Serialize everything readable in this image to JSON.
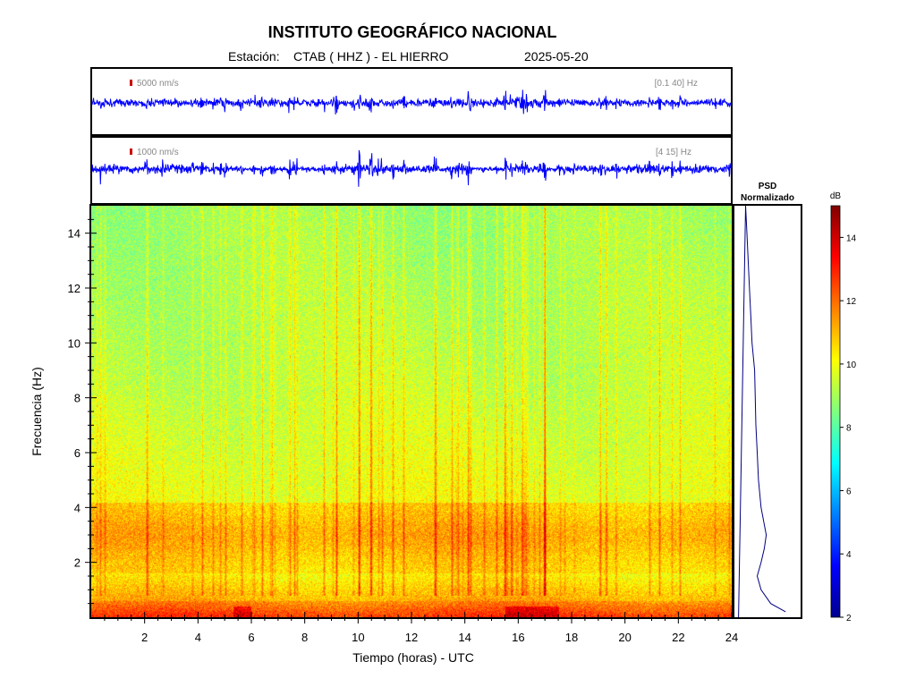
{
  "header": {
    "title": "INSTITUTO GEOGRÁFICO NACIONAL",
    "station_label": "Estación:",
    "station": "CTAB ( HHZ ) - EL HIERRO",
    "date": "2025-05-20"
  },
  "chart_data": [
    {
      "type": "line",
      "panel": "waveform-broadband",
      "scale_label": "5000 nm/s",
      "filter_label": "[0.1 40] Hz",
      "color": "#0000ff",
      "scale_bar_color": "#cc0000",
      "xlim": [
        0,
        24
      ]
    },
    {
      "type": "line",
      "panel": "waveform-filtered",
      "scale_label": "1000 nm/s",
      "filter_label": "[4 15] Hz",
      "color": "#0000ff",
      "scale_bar_color": "#cc0000",
      "xlim": [
        0,
        24
      ]
    },
    {
      "type": "heatmap",
      "panel": "spectrogram",
      "xlabel": "Tiempo (horas) - UTC",
      "ylabel": "Frecuencia  (Hz)",
      "xlim": [
        0,
        24
      ],
      "ylim": [
        0,
        15
      ],
      "x_ticks": [
        2,
        4,
        6,
        8,
        10,
        12,
        14,
        16,
        18,
        20,
        22,
        24
      ],
      "y_ticks": [
        2,
        4,
        6,
        8,
        10,
        12,
        14
      ],
      "colorbar": {
        "label": "dB",
        "range": [
          2,
          15
        ],
        "ticks": [
          2,
          4,
          6,
          8,
          10,
          12,
          14
        ],
        "colormap": "jet"
      }
    },
    {
      "type": "line",
      "panel": "psd",
      "title_line1": "PSD",
      "title_line2": "Normalizado",
      "color": "#000080",
      "ylim": [
        0,
        15
      ],
      "xlim": [
        0,
        1
      ],
      "frequency": [
        0.2,
        0.5,
        1,
        1.5,
        2,
        2.5,
        3,
        3.5,
        4,
        5,
        6,
        7,
        8,
        9,
        10,
        11,
        12,
        13,
        14,
        15
      ],
      "values": [
        0.78,
        0.55,
        0.4,
        0.34,
        0.4,
        0.45,
        0.48,
        0.44,
        0.4,
        0.36,
        0.34,
        0.32,
        0.31,
        0.3,
        0.26,
        0.24,
        0.22,
        0.2,
        0.18,
        0.16
      ]
    }
  ]
}
